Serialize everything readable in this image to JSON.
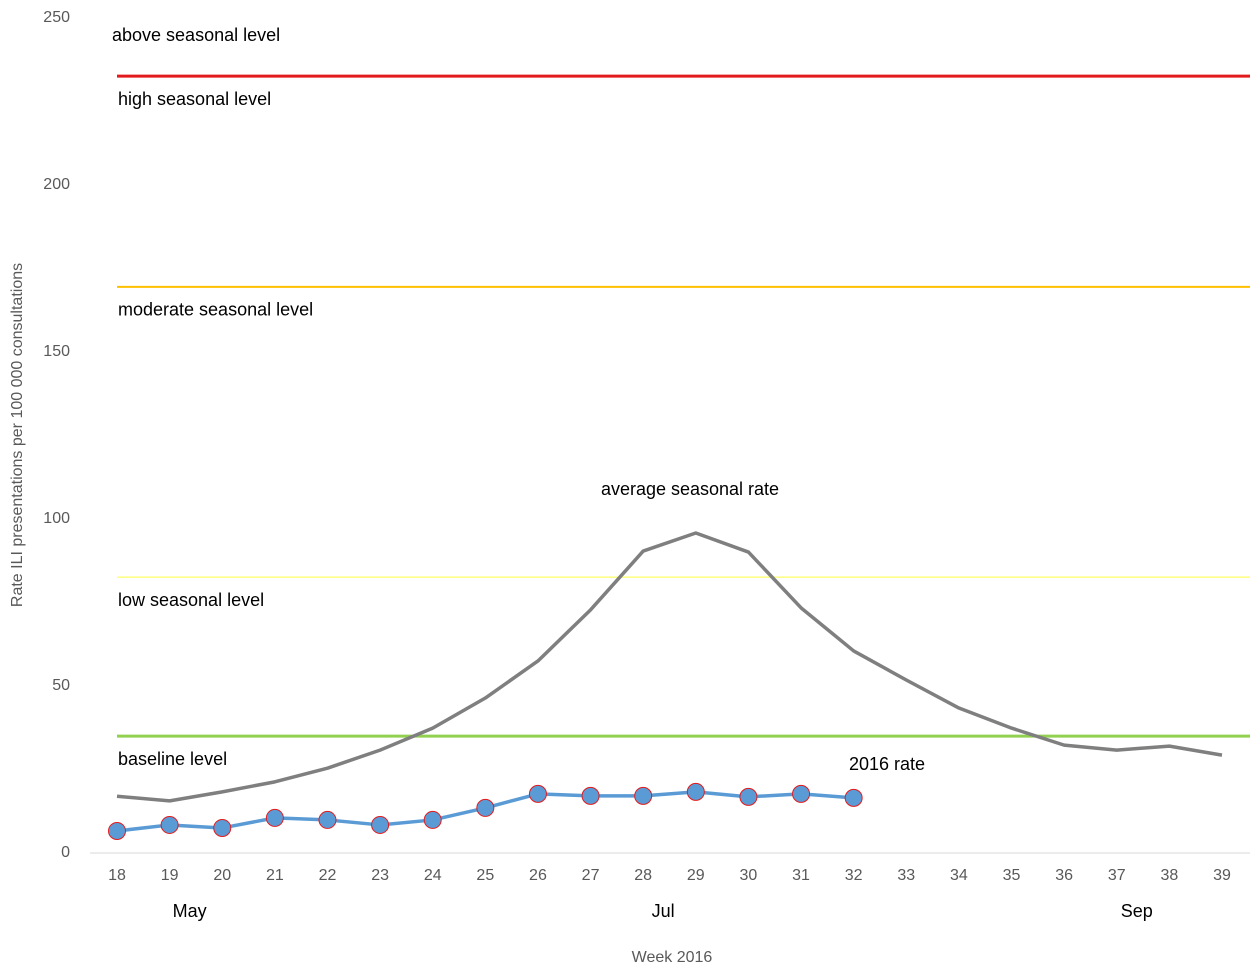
{
  "chart_data": {
    "type": "line",
    "y_label": "Rate ILI presentations per 100 000 consultations",
    "x_label": "Week 2016",
    "categories": [
      "18",
      "19",
      "20",
      "21",
      "22",
      "23",
      "24",
      "25",
      "26",
      "27",
      "28",
      "29",
      "30",
      "31",
      "32",
      "33",
      "34",
      "35",
      "36",
      "37",
      "38",
      "39"
    ],
    "month_labels": [
      null,
      "May",
      null,
      null,
      null,
      null,
      null,
      null,
      null,
      null,
      "Jul",
      null,
      null,
      null,
      null,
      null,
      null,
      null,
      null,
      "Sep",
      null,
      null
    ],
    "ylim": [
      0,
      250
    ],
    "yticks": [
      0,
      50,
      100,
      150,
      200,
      250
    ],
    "grid": false,
    "thresholds": [
      {
        "name": "baseline level",
        "value": 35,
        "color": "#92d050"
      },
      {
        "name": "low seasonal level",
        "value": 82.6,
        "color": "#ffff66"
      },
      {
        "name": "moderate seasonal level",
        "value": 169.5,
        "color": "#ffc000"
      },
      {
        "name": "high seasonal level",
        "name_above": "above seasonal level",
        "value": 232.6,
        "color": "#e31a1c"
      }
    ],
    "series": [
      {
        "name": "average seasonal rate",
        "color": "#7f7f7f",
        "values": [
          17,
          15.6,
          18.3,
          21.3,
          25.4,
          30.8,
          37.4,
          46.4,
          57.5,
          72.8,
          90.4,
          95.8,
          90.1,
          73.4,
          60.5,
          51.8,
          43.4,
          37.4,
          32.3,
          30.8,
          32,
          29.3
        ]
      },
      {
        "name": "2016 rate",
        "color": "#5b9bd5",
        "marker_edge": "#e31a1c",
        "values": [
          6.6,
          8.4,
          7.5,
          10.5,
          9.9,
          8.4,
          9.9,
          13.5,
          17.7,
          17.1,
          17.1,
          18.3,
          16.8,
          17.7,
          16.5,
          null,
          null,
          null,
          null,
          null,
          null,
          null
        ]
      }
    ]
  }
}
